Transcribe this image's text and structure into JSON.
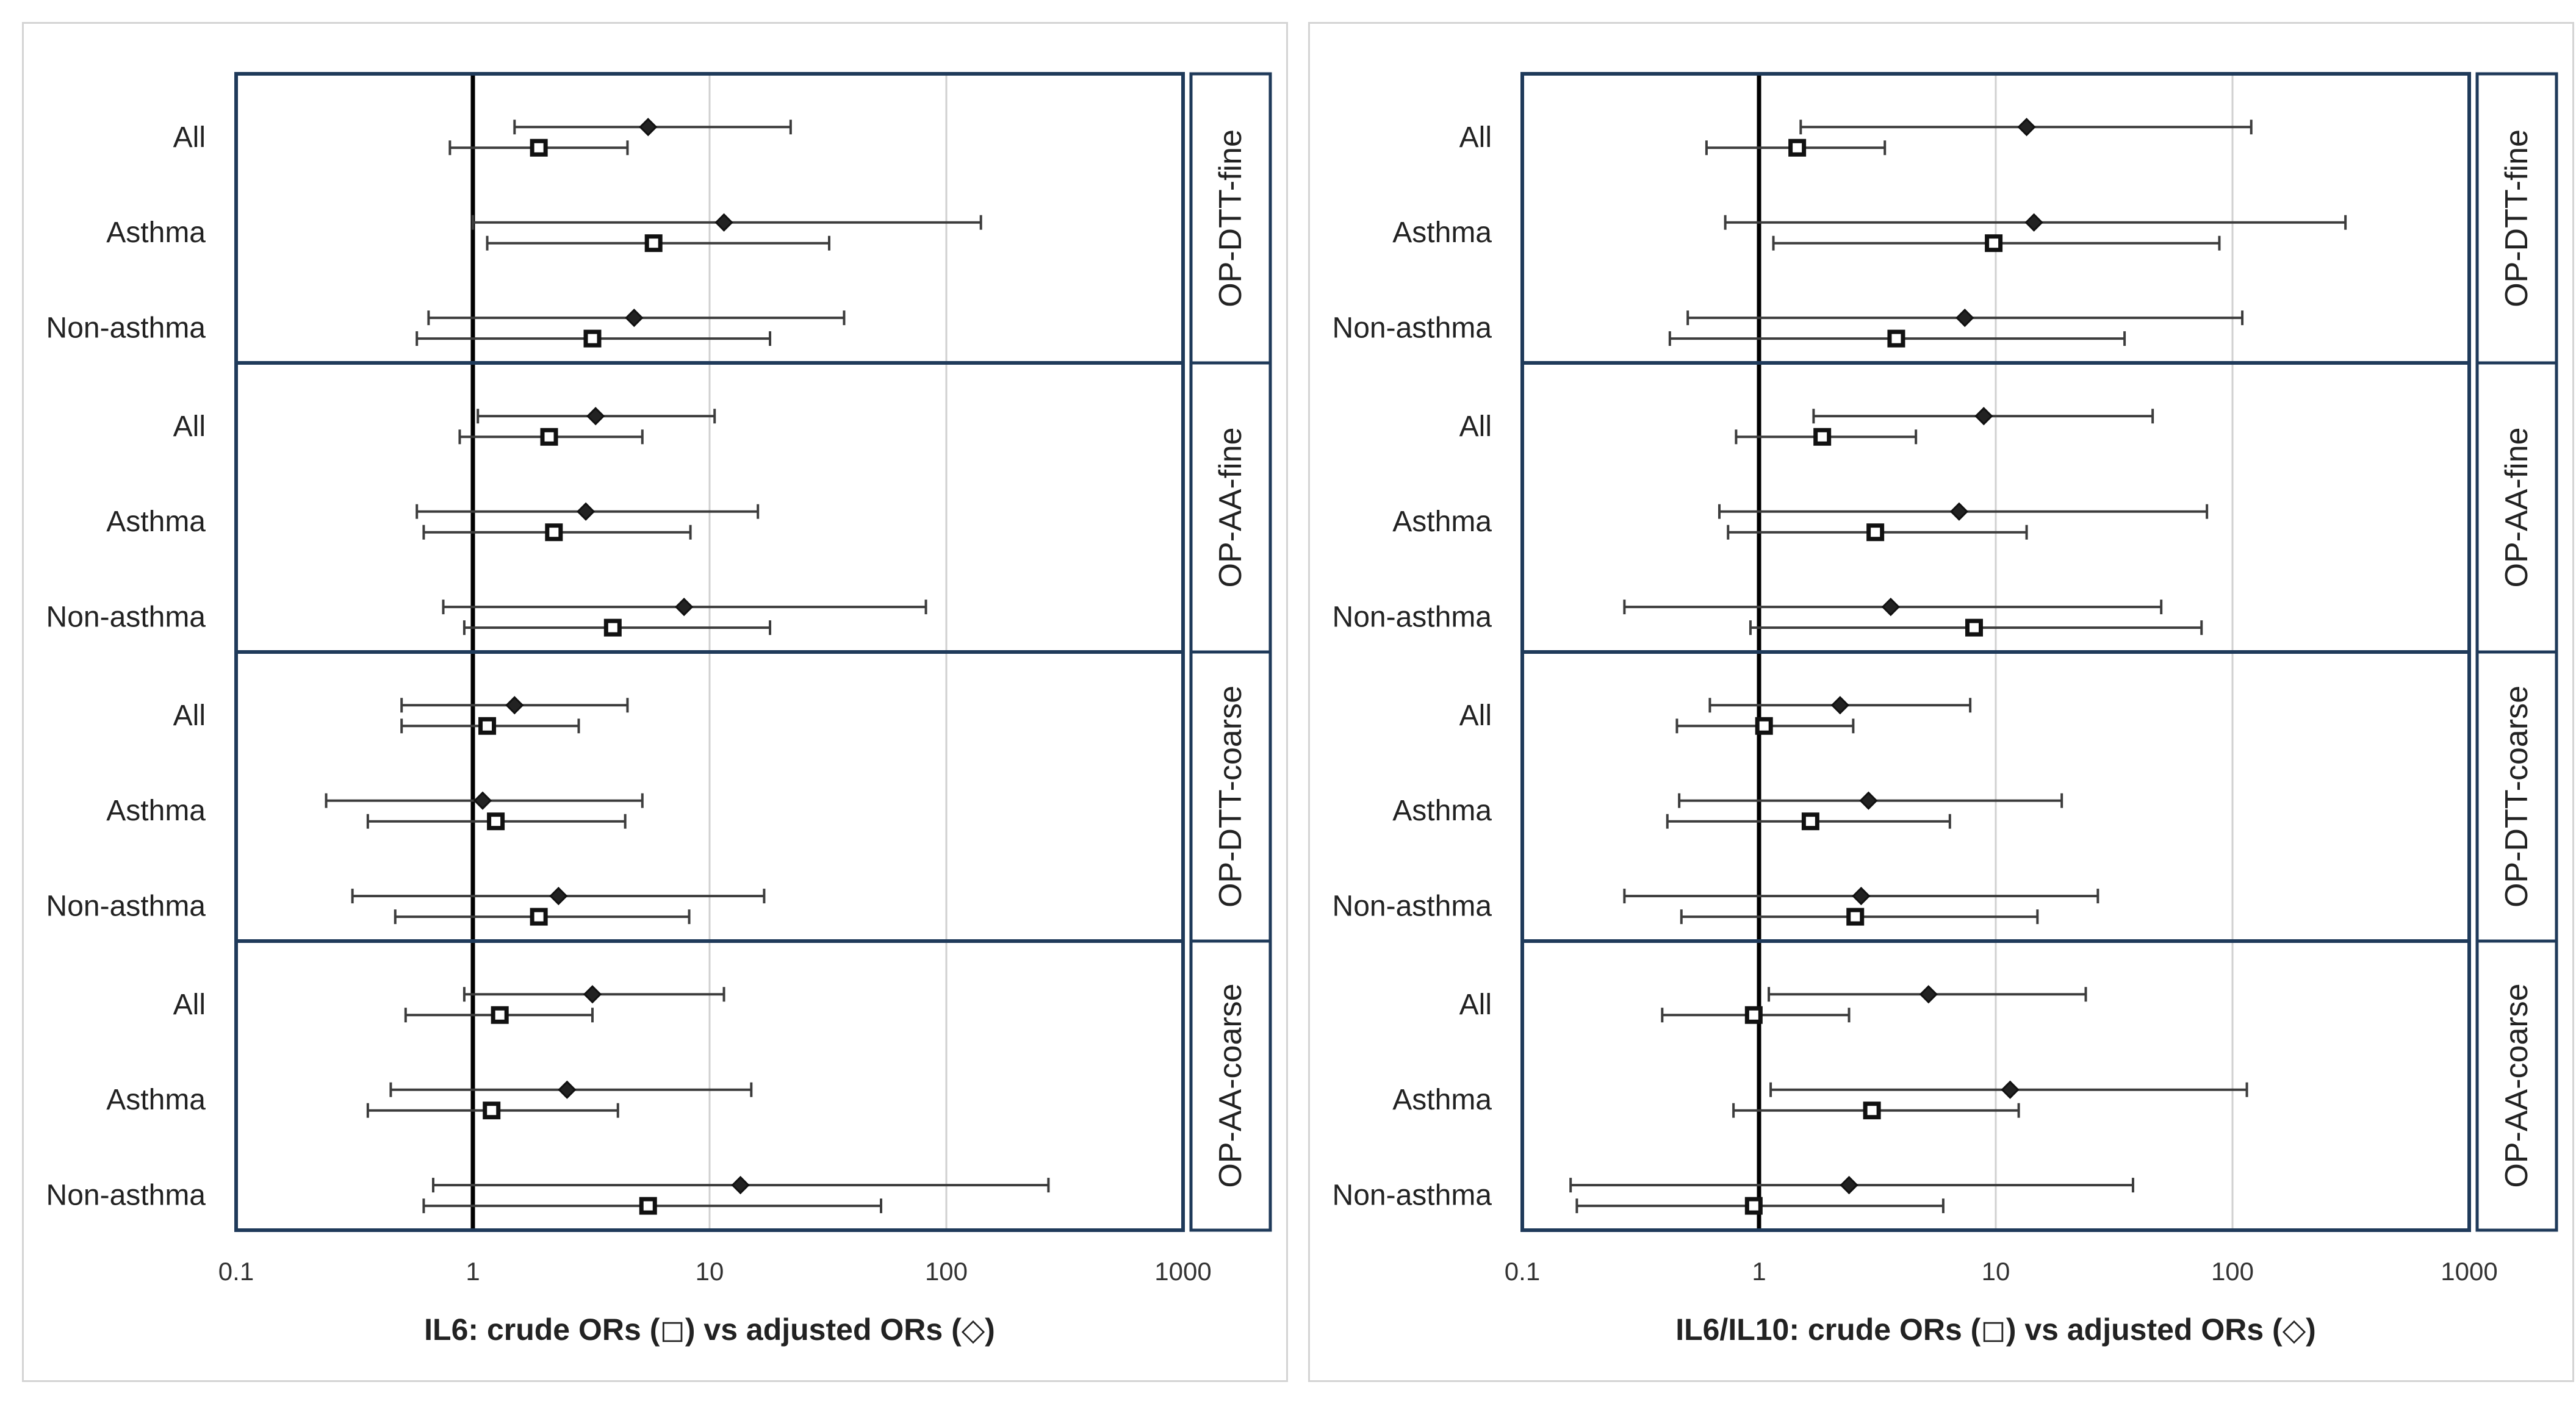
{
  "chart_data": [
    {
      "type": "forest",
      "xlabel": "IL6: crude ORs (◻) vs adjusted ORs (◇)",
      "xscale": "log",
      "xlim": [
        0.1,
        1000
      ],
      "xticks": [
        "0.1",
        "1",
        "10",
        "100",
        "1000"
      ],
      "reference_line": 1,
      "groups": [
        {
          "name": "OP-DTT-fine",
          "rows": [
            {
              "label": "All",
              "adjusted": [
                5.5,
                1.5,
                22
              ],
              "crude": [
                1.9,
                0.8,
                4.5
              ]
            },
            {
              "label": "Asthma",
              "adjusted": [
                11.5,
                1.0,
                140
              ],
              "crude": [
                5.8,
                1.15,
                32
              ]
            },
            {
              "label": "Non-asthma",
              "adjusted": [
                4.8,
                0.65,
                37
              ],
              "crude": [
                3.2,
                0.58,
                18
              ]
            }
          ]
        },
        {
          "name": "OP-AA-fine",
          "rows": [
            {
              "label": "All",
              "adjusted": [
                3.3,
                1.05,
                10.5
              ],
              "crude": [
                2.1,
                0.88,
                5.2
              ]
            },
            {
              "label": "Asthma",
              "adjusted": [
                3.0,
                0.58,
                16
              ],
              "crude": [
                2.2,
                0.62,
                8.3
              ]
            },
            {
              "label": "Non-asthma",
              "adjusted": [
                7.8,
                0.75,
                82
              ],
              "crude": [
                3.9,
                0.92,
                18
              ]
            }
          ]
        },
        {
          "name": "OP-DTT-coarse",
          "rows": [
            {
              "label": "All",
              "adjusted": [
                1.5,
                0.5,
                4.5
              ],
              "crude": [
                1.15,
                0.5,
                2.8
              ]
            },
            {
              "label": "Asthma",
              "adjusted": [
                1.1,
                0.24,
                5.2
              ],
              "crude": [
                1.25,
                0.36,
                4.4
              ]
            },
            {
              "label": "Non-asthma",
              "adjusted": [
                2.3,
                0.31,
                17
              ],
              "crude": [
                1.9,
                0.47,
                8.2
              ]
            }
          ]
        },
        {
          "name": "OP-AA-coarse",
          "rows": [
            {
              "label": "All",
              "adjusted": [
                3.2,
                0.92,
                11.5
              ],
              "crude": [
                1.3,
                0.52,
                3.2
              ]
            },
            {
              "label": "Asthma",
              "adjusted": [
                2.5,
                0.45,
                15
              ],
              "crude": [
                1.2,
                0.36,
                4.1
              ]
            },
            {
              "label": "Non-asthma",
              "adjusted": [
                13.5,
                0.68,
                270
              ],
              "crude": [
                5.5,
                0.62,
                53
              ]
            }
          ]
        }
      ]
    },
    {
      "type": "forest",
      "xlabel": "IL6/IL10: crude ORs (◻) vs adjusted ORs (◇)",
      "xscale": "log",
      "xlim": [
        0.1,
        1000
      ],
      "xticks": [
        "0.1",
        "1",
        "10",
        "100",
        "1000"
      ],
      "reference_line": 1,
      "groups": [
        {
          "name": "OP-DTT-fine",
          "rows": [
            {
              "label": "All",
              "adjusted": [
                13.5,
                1.5,
                120
              ],
              "crude": [
                1.45,
                0.6,
                3.4
              ]
            },
            {
              "label": "Asthma",
              "adjusted": [
                14.5,
                0.72,
                300
              ],
              "crude": [
                9.8,
                1.15,
                88
              ]
            },
            {
              "label": "Non-asthma",
              "adjusted": [
                7.4,
                0.5,
                110
              ],
              "crude": [
                3.8,
                0.42,
                35
              ]
            }
          ]
        },
        {
          "name": "OP-AA-fine",
          "rows": [
            {
              "label": "All",
              "adjusted": [
                8.9,
                1.7,
                46
              ],
              "crude": [
                1.85,
                0.8,
                4.6
              ]
            },
            {
              "label": "Asthma",
              "adjusted": [
                7.0,
                0.68,
                78
              ],
              "crude": [
                3.1,
                0.74,
                13.5
              ]
            },
            {
              "label": "Non-asthma",
              "adjusted": [
                3.6,
                0.27,
                50
              ],
              "crude": [
                8.1,
                0.92,
                74
              ]
            }
          ]
        },
        {
          "name": "OP-DTT-coarse",
          "rows": [
            {
              "label": "All",
              "adjusted": [
                2.2,
                0.62,
                7.8
              ],
              "crude": [
                1.05,
                0.45,
                2.5
              ]
            },
            {
              "label": "Asthma",
              "adjusted": [
                2.9,
                0.46,
                19
              ],
              "crude": [
                1.65,
                0.41,
                6.4
              ]
            },
            {
              "label": "Non-asthma",
              "adjusted": [
                2.7,
                0.27,
                27
              ],
              "crude": [
                2.55,
                0.47,
                15
              ]
            }
          ]
        },
        {
          "name": "OP-AA-coarse",
          "rows": [
            {
              "label": "All",
              "adjusted": [
                5.2,
                1.1,
                24
              ],
              "crude": [
                0.95,
                0.39,
                2.4
              ]
            },
            {
              "label": "Asthma",
              "adjusted": [
                11.5,
                1.12,
                115
              ],
              "crude": [
                3.0,
                0.78,
                12.5
              ]
            },
            {
              "label": "Non-asthma",
              "adjusted": [
                2.4,
                0.16,
                38
              ],
              "crude": [
                0.95,
                0.17,
                6.0
              ]
            }
          ]
        }
      ]
    }
  ]
}
